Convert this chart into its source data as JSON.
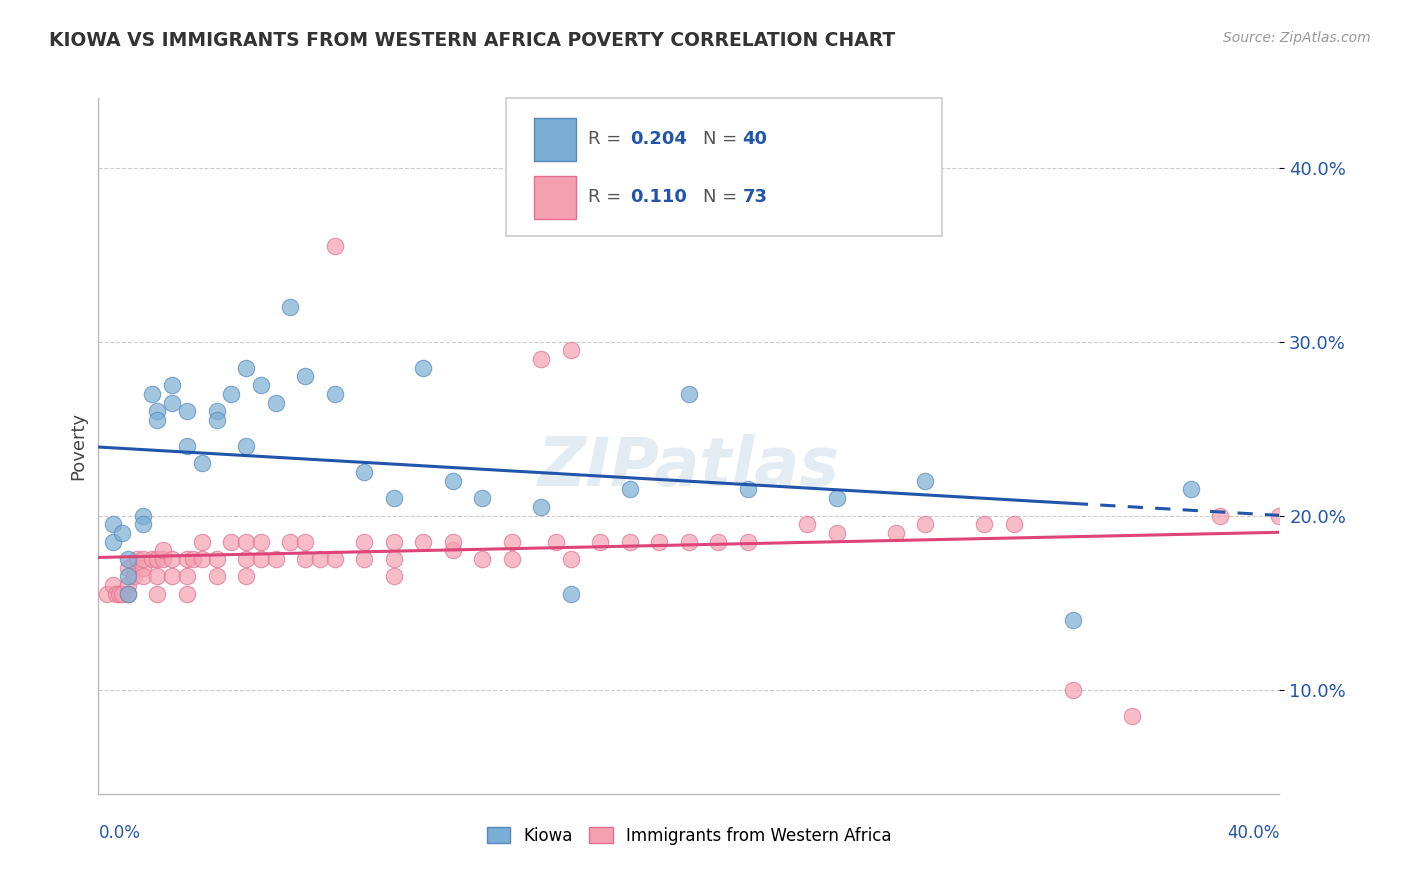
{
  "title": "KIOWA VS IMMIGRANTS FROM WESTERN AFRICA POVERTY CORRELATION CHART",
  "source": "Source: ZipAtlas.com",
  "ylabel": "Poverty",
  "ytick_labels": [
    "10.0%",
    "20.0%",
    "30.0%",
    "40.0%"
  ],
  "ytick_values": [
    0.1,
    0.2,
    0.3,
    0.4
  ],
  "xlim": [
    0.0,
    0.4
  ],
  "ylim": [
    0.04,
    0.44
  ],
  "legend_label1": "Kiowa",
  "legend_label2": "Immigrants from Western Africa",
  "blue_scatter": "#7BAED4",
  "pink_scatter": "#F4A0B0",
  "blue_edge": "#5588BB",
  "pink_edge": "#E07090",
  "blue_line": "#2255AA",
  "pink_line": "#DD4477",
  "watermark": "ZIPatlas",
  "kiowa_x": [
    0.005,
    0.005,
    0.008,
    0.01,
    0.01,
    0.01,
    0.015,
    0.015,
    0.018,
    0.02,
    0.02,
    0.025,
    0.025,
    0.03,
    0.03,
    0.035,
    0.04,
    0.04,
    0.045,
    0.05,
    0.05,
    0.055,
    0.06,
    0.065,
    0.07,
    0.08,
    0.09,
    0.1,
    0.11,
    0.12,
    0.13,
    0.15,
    0.16,
    0.18,
    0.2,
    0.22,
    0.25,
    0.28,
    0.33,
    0.37
  ],
  "kiowa_y": [
    0.195,
    0.185,
    0.19,
    0.175,
    0.165,
    0.155,
    0.2,
    0.195,
    0.27,
    0.26,
    0.255,
    0.275,
    0.265,
    0.24,
    0.26,
    0.23,
    0.26,
    0.255,
    0.27,
    0.285,
    0.24,
    0.275,
    0.265,
    0.32,
    0.28,
    0.27,
    0.225,
    0.21,
    0.285,
    0.22,
    0.21,
    0.205,
    0.155,
    0.215,
    0.27,
    0.215,
    0.21,
    0.22,
    0.14,
    0.215
  ],
  "africa_x": [
    0.003,
    0.005,
    0.006,
    0.007,
    0.008,
    0.01,
    0.01,
    0.01,
    0.012,
    0.013,
    0.015,
    0.015,
    0.015,
    0.018,
    0.02,
    0.02,
    0.02,
    0.022,
    0.022,
    0.025,
    0.025,
    0.03,
    0.03,
    0.03,
    0.032,
    0.035,
    0.035,
    0.04,
    0.04,
    0.045,
    0.05,
    0.05,
    0.05,
    0.055,
    0.055,
    0.06,
    0.065,
    0.07,
    0.07,
    0.075,
    0.08,
    0.08,
    0.09,
    0.09,
    0.1,
    0.1,
    0.1,
    0.11,
    0.12,
    0.12,
    0.13,
    0.14,
    0.14,
    0.15,
    0.155,
    0.16,
    0.17,
    0.18,
    0.19,
    0.2,
    0.21,
    0.22,
    0.24,
    0.25,
    0.27,
    0.28,
    0.3,
    0.31,
    0.33,
    0.35,
    0.16,
    0.4,
    0.38
  ],
  "africa_y": [
    0.155,
    0.16,
    0.155,
    0.155,
    0.155,
    0.16,
    0.155,
    0.17,
    0.165,
    0.175,
    0.17,
    0.165,
    0.175,
    0.175,
    0.165,
    0.155,
    0.175,
    0.175,
    0.18,
    0.165,
    0.175,
    0.165,
    0.155,
    0.175,
    0.175,
    0.185,
    0.175,
    0.175,
    0.165,
    0.185,
    0.175,
    0.165,
    0.185,
    0.175,
    0.185,
    0.175,
    0.185,
    0.175,
    0.185,
    0.175,
    0.175,
    0.355,
    0.175,
    0.185,
    0.175,
    0.185,
    0.165,
    0.185,
    0.18,
    0.185,
    0.175,
    0.175,
    0.185,
    0.29,
    0.185,
    0.175,
    0.185,
    0.185,
    0.185,
    0.185,
    0.185,
    0.185,
    0.195,
    0.19,
    0.19,
    0.195,
    0.195,
    0.195,
    0.1,
    0.085,
    0.295,
    0.2,
    0.2
  ]
}
